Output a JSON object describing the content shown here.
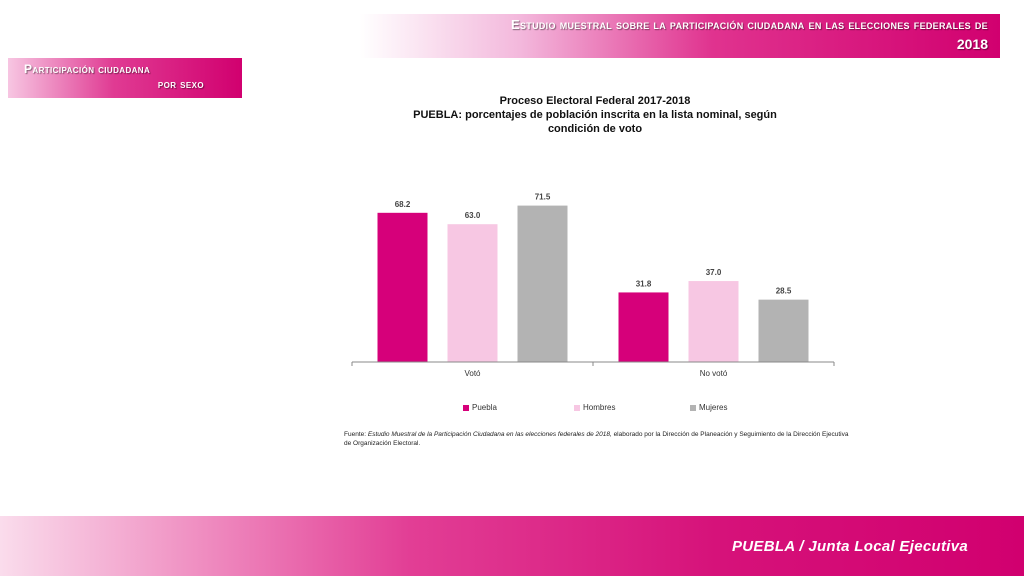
{
  "header": {
    "title": "Estudio muestral sobre la participación ciudadana en las elecciones federales de",
    "year": "2018"
  },
  "section": {
    "line1": "Participación ciudadana",
    "line2": "por sexo"
  },
  "chart_title": {
    "line1": "Proceso Electoral Federal 2017-2018",
    "line2": "PUEBLA: porcentajes de población inscrita en la lista nominal,  según",
    "line3": "condición de voto"
  },
  "chart_data": {
    "type": "bar",
    "categories": [
      "Votó",
      "No votó"
    ],
    "series": [
      {
        "name": "Puebla",
        "values": [
          68.2,
          31.8
        ],
        "color": "#d6007a"
      },
      {
        "name": "Hombres",
        "values": [
          63.0,
          37.0
        ],
        "color": "#f7c7e3"
      },
      {
        "name": "Mujeres",
        "values": [
          71.5,
          28.5
        ],
        "color": "#b3b3b3"
      }
    ],
    "data_labels": [
      [
        "68.2",
        "31.8"
      ],
      [
        "63.0",
        "37.0"
      ],
      [
        "71.5",
        "28.5"
      ]
    ],
    "ylim": [
      0,
      80
    ],
    "legend_position": "bottom",
    "grid": false
  },
  "legend": [
    {
      "name": "Puebla",
      "color": "#d6007a"
    },
    {
      "name": "Hombres",
      "color": "#f7c7e3"
    },
    {
      "name": "Mujeres",
      "color": "#b3b3b3"
    }
  ],
  "source": {
    "prefix": "Fuente: ",
    "title": "Estudio Muestral de la Participación Ciudadana  en las elecciones federales de 2018,",
    "rest": " elaborado  por la Dirección de Planeación y Seguimiento de la Dirección Ejecutiva de Organización  Electoral."
  },
  "footer": {
    "text": "PUEBLA / Junta Local Ejecutiva"
  }
}
